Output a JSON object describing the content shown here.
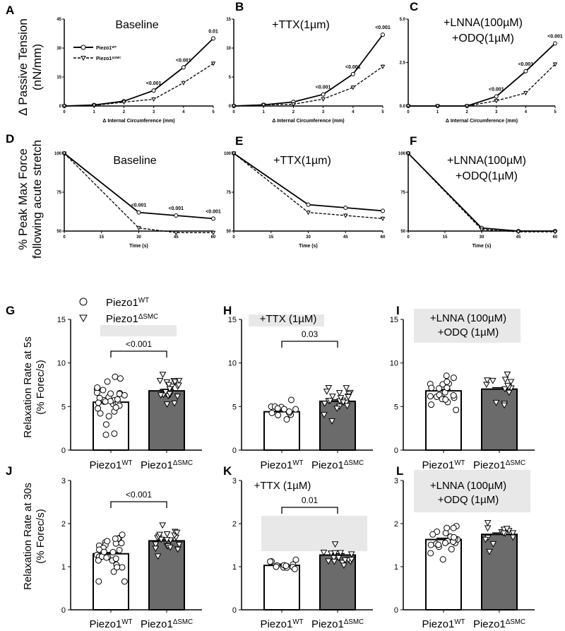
{
  "legend": {
    "wt": "Piezo1",
    "wt_sup": "WT",
    "smc": "Piezo1",
    "smc_sup": "ΔSMC"
  },
  "ylabels": {
    "tension": [
      "Δ Passive Tension",
      "(nN/mm)"
    ],
    "force": [
      "% Peak Max Force",
      "following acute stretch"
    ],
    "rate5": [
      "Relaxation Rate at 5s",
      "(% Forec/s)"
    ],
    "rate30": [
      "Relaxation Rate at 30s",
      "(% Forec/s)"
    ]
  },
  "chart_data": [
    {
      "panel": "A",
      "type": "line",
      "title": [
        "Baseline"
      ],
      "xlabel": "Δ Internal Circumference (mm)",
      "xlim": [
        0,
        5
      ],
      "ylim": [
        0,
        45
      ],
      "yticks": [
        "0",
        "15",
        "30",
        "45"
      ],
      "xticks": [
        "0",
        "1",
        "2",
        "3",
        "4",
        "5"
      ],
      "x": [
        0,
        1,
        2,
        3,
        4,
        5
      ],
      "series": [
        {
          "name": "Piezo1WT",
          "values": [
            0,
            0.5,
            2.5,
            8,
            20,
            35
          ]
        },
        {
          "name": "Piezo1ΔSMC",
          "values": [
            0,
            0.3,
            2,
            3.5,
            12,
            22
          ]
        }
      ],
      "pvalues": [
        {
          "x": 3,
          "text": "<0.001"
        },
        {
          "x": 4,
          "text": "<0.001"
        },
        {
          "x": 5,
          "text": "0.01"
        }
      ]
    },
    {
      "panel": "B",
      "type": "line",
      "title": [
        "+TTX(1µm)"
      ],
      "xlabel": "Δ Internal Circumference (mm)",
      "xlim": [
        0,
        5
      ],
      "ylim": [
        0,
        15
      ],
      "yticks": [
        "0",
        "5",
        "10",
        "15"
      ],
      "xticks": [
        "0",
        "1",
        "2",
        "3",
        "4",
        "5"
      ],
      "x": [
        0,
        1,
        2,
        3,
        4,
        5
      ],
      "series": [
        {
          "name": "Piezo1WT",
          "values": [
            0,
            0.2,
            0.7,
            2,
            5.5,
            12.3
          ]
        },
        {
          "name": "Piezo1ΔSMC",
          "values": [
            0,
            0.2,
            0.3,
            1.2,
            3.2,
            6.8
          ]
        }
      ],
      "pvalues": [
        {
          "x": 3,
          "text": "<0.001"
        },
        {
          "x": 4,
          "text": "<0.001"
        },
        {
          "x": 5,
          "text": "<0.001"
        }
      ]
    },
    {
      "panel": "C",
      "type": "line",
      "title": [
        "+LNNA(100µM)",
        "+ODQ(1µM)"
      ],
      "xlabel": "Δ Internal Circumference (mm)",
      "xlim": [
        0,
        5
      ],
      "ylim": [
        0,
        5
      ],
      "yticks": [
        "0.0",
        "2.5",
        "5.0"
      ],
      "xticks": [
        "0",
        "1",
        "2",
        "3",
        "4",
        "5"
      ],
      "x": [
        0,
        1,
        2,
        3,
        4,
        5
      ],
      "series": [
        {
          "name": "Piezo1WT",
          "values": [
            0,
            0,
            0,
            0.55,
            2,
            3.6
          ]
        },
        {
          "name": "Piezo1ΔSMC",
          "values": [
            0,
            0,
            0,
            0.3,
            0.75,
            2.4
          ]
        }
      ],
      "pvalues": [
        {
          "x": 3,
          "text": "<0.001"
        },
        {
          "x": 4,
          "text": "<0.001"
        },
        {
          "x": 5,
          "text": "<0.001"
        }
      ]
    },
    {
      "panel": "D",
      "type": "line",
      "title": [
        "Baseline"
      ],
      "xlabel": "Time (s)",
      "xlim": [
        0,
        60
      ],
      "ylim": [
        50,
        100
      ],
      "yticks": [
        "50",
        "75",
        "100"
      ],
      "xticks": [
        "0",
        "15",
        "30",
        "45",
        "60"
      ],
      "x": [
        0,
        30,
        45,
        60
      ],
      "series": [
        {
          "name": "Piezo1WT",
          "values": [
            100,
            62,
            60,
            58
          ]
        },
        {
          "name": "Piezo1ΔSMC",
          "values": [
            100,
            52,
            49,
            49
          ]
        }
      ],
      "pvalues": [
        {
          "x": 30,
          "text": "<0.001"
        },
        {
          "x": 45,
          "text": "<0.001"
        },
        {
          "x": 60,
          "text": "<0.001"
        }
      ]
    },
    {
      "panel": "E",
      "type": "line",
      "title": [
        "+TTX(1µm)"
      ],
      "xlabel": "Time (s)",
      "xlim": [
        0,
        60
      ],
      "ylim": [
        50,
        100
      ],
      "yticks": [
        "50",
        "75",
        "100"
      ],
      "xticks": [
        "0",
        "15",
        "30",
        "45",
        "60"
      ],
      "x": [
        0,
        30,
        45,
        60
      ],
      "series": [
        {
          "name": "Piezo1WT",
          "values": [
            100,
            67,
            65,
            63
          ]
        },
        {
          "name": "Piezo1ΔSMC",
          "values": [
            100,
            62,
            60,
            58
          ]
        }
      ],
      "pvalues": []
    },
    {
      "panel": "F",
      "type": "line",
      "title": [
        "+LNNA(100µM)",
        "+ODQ(1µM)"
      ],
      "xlabel": "Time (s)",
      "xlim": [
        0,
        60
      ],
      "ylim": [
        50,
        100
      ],
      "yticks": [
        "50",
        "75",
        "100"
      ],
      "xticks": [
        "0",
        "15",
        "30",
        "45",
        "60"
      ],
      "x": [
        0,
        30,
        45,
        60
      ],
      "series": [
        {
          "name": "Piezo1WT",
          "values": [
            100,
            52,
            50,
            50
          ]
        },
        {
          "name": "Piezo1ΔSMC",
          "values": [
            100,
            51,
            49.5,
            49.5
          ]
        }
      ],
      "pvalues": []
    },
    {
      "panel": "G",
      "type": "bar",
      "title": [],
      "ylim": [
        0,
        15
      ],
      "yticks": [
        "0",
        "5",
        "10",
        "15"
      ],
      "categories": [
        "Piezo1WT",
        "Piezo1ΔSMC"
      ],
      "values": [
        5.5,
        6.8
      ],
      "n": [
        32,
        22
      ],
      "spread": [
        2.2,
        1.5
      ],
      "pvalue": "<0.001"
    },
    {
      "panel": "H",
      "type": "bar",
      "title": [
        "+TTX (1µM)"
      ],
      "ylim": [
        0,
        15
      ],
      "yticks": [
        "0",
        "5",
        "10",
        "15"
      ],
      "categories": [
        "Piezo1WT",
        "Piezo1ΔSMC"
      ],
      "values": [
        4.4,
        5.6
      ],
      "n": [
        13,
        22
      ],
      "spread": [
        1.0,
        1.8
      ],
      "pvalue": "0.03"
    },
    {
      "panel": "I",
      "type": "bar",
      "title": [
        "+LNNA (100µM)",
        "+ODQ (1µM)"
      ],
      "ylim": [
        0,
        15
      ],
      "yticks": [
        "0",
        "5",
        "10",
        "15"
      ],
      "categories": [
        "Piezo1WT",
        "Piezo1ΔSMC"
      ],
      "values": [
        6.8,
        7.0
      ],
      "n": [
        21,
        14
      ],
      "spread": [
        1.5,
        1.8
      ],
      "pvalue": ""
    },
    {
      "panel": "J",
      "type": "bar",
      "title": [],
      "ylim": [
        0,
        3
      ],
      "yticks": [
        "0",
        "1",
        "2",
        "3"
      ],
      "categories": [
        "Piezo1WT",
        "Piezo1ΔSMC"
      ],
      "values": [
        1.3,
        1.6
      ],
      "n": [
        32,
        22
      ],
      "spread": [
        0.45,
        0.25
      ],
      "pvalue": "<0.001"
    },
    {
      "panel": "K",
      "type": "bar",
      "title": [
        "+TTX (1µM)"
      ],
      "ylim": [
        0,
        3
      ],
      "yticks": [
        "0",
        "1",
        "2",
        "3"
      ],
      "categories": [
        "Piezo1WT",
        "Piezo1ΔSMC"
      ],
      "values": [
        1.03,
        1.27
      ],
      "n": [
        13,
        16
      ],
      "spread": [
        0.15,
        0.2
      ],
      "pvalue": "0.01"
    },
    {
      "panel": "L",
      "type": "bar",
      "title": [
        "+LNNA (100µM)",
        "+ODQ (1µM)"
      ],
      "ylim": [
        0,
        3
      ],
      "yticks": [
        "0",
        "1",
        "2",
        "3"
      ],
      "categories": [
        "Piezo1WT",
        "Piezo1ΔSMC"
      ],
      "values": [
        1.63,
        1.75
      ],
      "n": [
        21,
        14
      ],
      "spread": [
        0.3,
        0.25
      ],
      "pvalue": ""
    }
  ]
}
